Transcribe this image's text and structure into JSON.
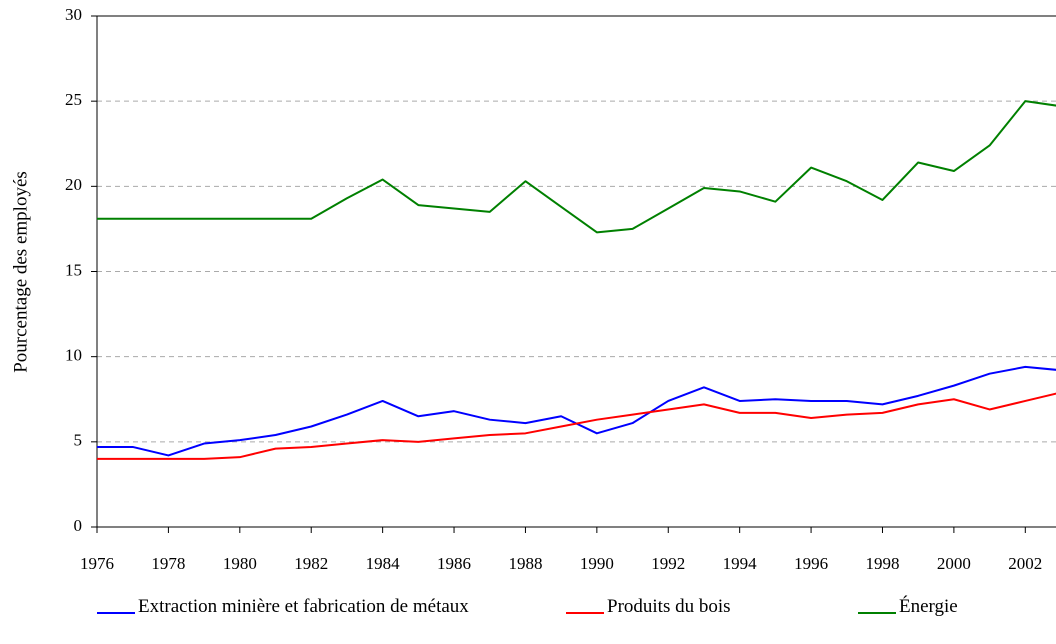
{
  "chart_data": {
    "type": "line",
    "y_label": "Pourcentage des employés",
    "x": [
      1976,
      1977,
      1978,
      1979,
      1980,
      1981,
      1982,
      1983,
      1984,
      1985,
      1986,
      1987,
      1988,
      1989,
      1990,
      1991,
      1992,
      1993,
      1994,
      1995,
      1996,
      1997,
      1998,
      1999,
      2000,
      2001,
      2002,
      2003
    ],
    "series": [
      {
        "name": "Extraction minière et fabrication de métaux",
        "color": "#0000ff",
        "values": [
          4.7,
          4.7,
          4.2,
          4.9,
          5.1,
          5.4,
          5.9,
          6.6,
          7.4,
          6.5,
          6.8,
          6.3,
          6.1,
          6.5,
          5.5,
          6.1,
          7.4,
          8.2,
          7.4,
          7.5,
          7.4,
          7.4,
          7.2,
          7.7,
          8.3,
          9.0,
          9.4,
          9.2
        ]
      },
      {
        "name": "Produits du bois",
        "color": "#ff0000",
        "values": [
          4.0,
          4.0,
          4.0,
          4.0,
          4.1,
          4.6,
          4.7,
          4.9,
          5.1,
          5.0,
          5.2,
          5.4,
          5.5,
          5.9,
          6.3,
          6.6,
          6.9,
          7.2,
          6.7,
          6.7,
          6.4,
          6.6,
          6.7,
          7.2,
          7.5,
          6.9,
          7.4,
          7.9
        ]
      },
      {
        "name": "Énergie",
        "color": "#008000",
        "values": [
          18.1,
          18.1,
          18.1,
          18.1,
          18.1,
          18.1,
          18.1,
          19.3,
          20.4,
          18.9,
          18.7,
          18.5,
          20.3,
          18.8,
          17.3,
          17.5,
          18.7,
          19.9,
          19.7,
          19.1,
          21.1,
          20.3,
          19.2,
          21.4,
          20.9,
          22.4,
          25.0,
          24.7
        ]
      }
    ],
    "xlim": [
      1976,
      2003
    ],
    "xticks": [
      1976,
      1978,
      1980,
      1982,
      1984,
      1986,
      1988,
      1990,
      1992,
      1994,
      1996,
      1998,
      2000,
      2002
    ],
    "ylim": [
      0,
      30
    ],
    "yticks": [
      0,
      5,
      10,
      15,
      20,
      25,
      30
    ],
    "grid": true
  }
}
